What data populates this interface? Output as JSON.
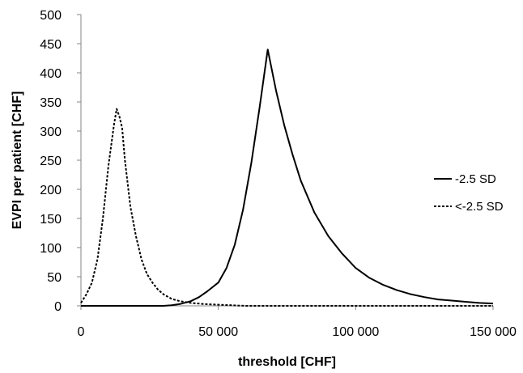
{
  "chart_data": {
    "type": "line",
    "title": "",
    "xlabel": "threshold [CHF]",
    "ylabel": "EVPI per patient [CHF]",
    "xlim": [
      0,
      150000
    ],
    "ylim": [
      0,
      500
    ],
    "x_ticks": [
      0,
      50000,
      100000,
      150000
    ],
    "x_tick_labels": [
      "0",
      "50 000",
      "100 000",
      "150 000"
    ],
    "y_ticks": [
      0,
      50,
      100,
      150,
      200,
      250,
      300,
      350,
      400,
      450,
      500
    ],
    "y_tick_labels": [
      "0",
      "50",
      "100",
      "150",
      "200",
      "250",
      "300",
      "350",
      "400",
      "450",
      "500"
    ],
    "grid": false,
    "legend_position": "right",
    "series": [
      {
        "name": "-2.5 SD",
        "style": "solid",
        "color": "#000000",
        "x": [
          0,
          10000,
          20000,
          25000,
          30000,
          33000,
          36000,
          40000,
          43000,
          46000,
          50000,
          53000,
          56000,
          59000,
          62000,
          65000,
          68000,
          71000,
          74000,
          77000,
          80000,
          85000,
          90000,
          95000,
          100000,
          105000,
          110000,
          115000,
          120000,
          125000,
          130000,
          135000,
          140000,
          145000,
          150000
        ],
        "y": [
          0,
          0,
          0,
          0,
          0,
          1,
          3,
          8,
          15,
          25,
          40,
          65,
          105,
          165,
          245,
          340,
          440,
          370,
          310,
          260,
          215,
          160,
          120,
          90,
          65,
          48,
          36,
          27,
          20,
          15,
          11,
          9,
          7,
          5,
          4
        ]
      },
      {
        "name": "<-2.5 SD",
        "style": "dashed",
        "color": "#000000",
        "x": [
          0,
          2000,
          4000,
          6000,
          8000,
          10000,
          12000,
          13000,
          14000,
          15000,
          16000,
          18000,
          20000,
          22000,
          24000,
          26000,
          28000,
          30000,
          33000,
          36000,
          40000,
          45000,
          50000,
          55000,
          60000,
          80000,
          100000,
          150000
        ],
        "y": [
          5,
          20,
          40,
          80,
          150,
          240,
          310,
          338,
          325,
          305,
          250,
          170,
          120,
          80,
          55,
          40,
          28,
          20,
          12,
          8,
          5,
          3,
          2,
          1,
          0,
          0,
          0,
          0
        ]
      }
    ]
  }
}
